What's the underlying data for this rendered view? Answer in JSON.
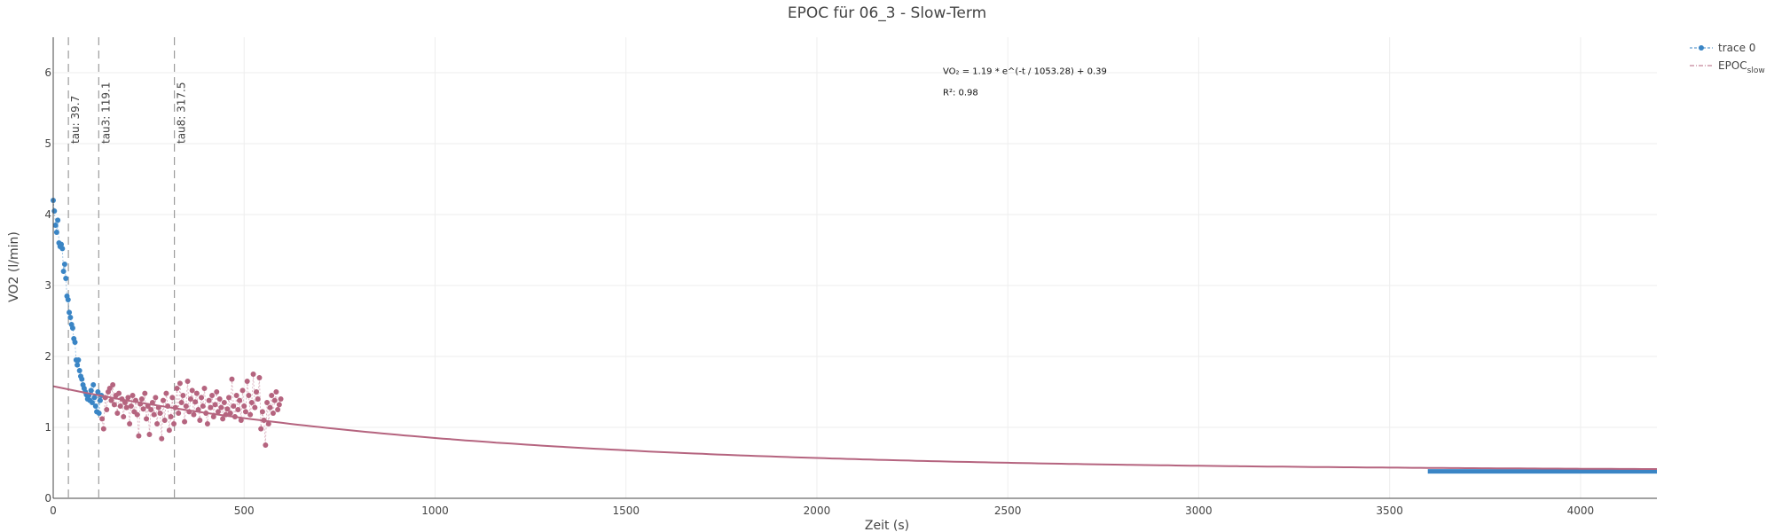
{
  "chart_data": {
    "type": "scatter",
    "title": "EPOC für 06_3 - Slow-Term",
    "xlabel": "Zeit (s)",
    "ylabel": "VO2 (l/min)",
    "xlim": [
      0,
      4200
    ],
    "ylim": [
      0,
      6.5
    ],
    "x_ticks": [
      0,
      500,
      1000,
      1500,
      2000,
      2500,
      3000,
      3500,
      4000
    ],
    "y_ticks": [
      0,
      1,
      2,
      3,
      4,
      5,
      6
    ],
    "grid": true,
    "legend_position": "top-right",
    "colors": {
      "trace0": "#3a85c5",
      "fit": "#b5647f",
      "vline": "#888888"
    },
    "legend": [
      {
        "label": "trace 0",
        "sub": ""
      },
      {
        "label": "EPOC",
        "sub": "slow"
      }
    ],
    "annotations": [
      {
        "text": "VO₂ = 1.19 * e^(-t / 1053.28) + 0.39",
        "x": 2330,
        "y": 5.98
      },
      {
        "text": "R²: 0.98",
        "x": 2330,
        "y": 5.68
      }
    ],
    "vlines": [
      {
        "label": "tau: 39.7",
        "x": 39.7
      },
      {
        "label": "tau3: 119.1",
        "x": 119.1
      },
      {
        "label": "tau8: 317.5",
        "x": 317.5
      }
    ],
    "fit": {
      "name": "EPOC slow",
      "a": 1.19,
      "tau": 1053.28,
      "c": 0.39,
      "x_range": [
        0,
        4200
      ]
    },
    "series": [
      {
        "name": "trace 0",
        "x": [
          0,
          3,
          6,
          9,
          12,
          15,
          18,
          21,
          24,
          27,
          30,
          33,
          36,
          39,
          42,
          45,
          48,
          51,
          54,
          57,
          60,
          63,
          66,
          69,
          72,
          75,
          78,
          81,
          84,
          87,
          90,
          93,
          96,
          99,
          102,
          105,
          108,
          111,
          114,
          117,
          120,
          123,
          126
        ],
        "y": [
          4.2,
          4.05,
          3.85,
          3.75,
          3.92,
          3.6,
          3.55,
          3.58,
          3.52,
          3.2,
          3.3,
          3.1,
          2.85,
          2.8,
          2.62,
          2.55,
          2.45,
          2.4,
          2.25,
          2.2,
          1.95,
          1.88,
          1.95,
          1.8,
          1.72,
          1.68,
          1.6,
          1.55,
          1.5,
          1.46,
          1.4,
          1.45,
          1.38,
          1.52,
          1.35,
          1.6,
          1.42,
          1.3,
          1.22,
          1.5,
          1.2,
          1.38,
          1.45
        ]
      },
      {
        "name": "trace 0 tail",
        "x": [
          3600,
          3650,
          3700,
          3750,
          3800,
          3850,
          3900,
          3950,
          4000,
          4050,
          4100,
          4150,
          4200
        ],
        "y": [
          0.38,
          0.38,
          0.38,
          0.38,
          0.38,
          0.38,
          0.38,
          0.38,
          0.38,
          0.38,
          0.38,
          0.38,
          0.38
        ]
      },
      {
        "name": "EPOC slow points",
        "x": [
          128,
          132,
          136,
          140,
          144,
          148,
          152,
          156,
          160,
          164,
          168,
          172,
          176,
          180,
          184,
          188,
          192,
          196,
          200,
          204,
          208,
          212,
          216,
          220,
          224,
          228,
          232,
          236,
          240,
          244,
          248,
          252,
          256,
          260,
          264,
          268,
          272,
          276,
          280,
          284,
          288,
          292,
          296,
          300,
          304,
          308,
          312,
          316,
          320,
          324,
          328,
          332,
          336,
          340,
          344,
          348,
          352,
          356,
          360,
          364,
          368,
          372,
          376,
          380,
          384,
          388,
          392,
          396,
          400,
          404,
          408,
          412,
          416,
          420,
          424,
          428,
          432,
          436,
          440,
          444,
          448,
          452,
          456,
          460,
          464,
          468,
          472,
          476,
          480,
          484,
          488,
          492,
          496,
          500,
          504,
          508,
          512,
          516,
          520,
          524,
          528,
          532,
          536,
          540,
          544,
          548,
          552,
          556,
          560,
          564,
          568,
          572,
          576,
          580,
          584,
          588,
          592,
          596
        ],
        "y": [
          1.12,
          0.98,
          1.42,
          1.25,
          1.5,
          1.55,
          1.38,
          1.6,
          1.32,
          1.45,
          1.2,
          1.48,
          1.3,
          1.4,
          1.15,
          1.35,
          1.28,
          1.42,
          1.05,
          1.3,
          1.45,
          1.22,
          1.38,
          1.18,
          0.88,
          1.33,
          1.4,
          1.26,
          1.48,
          1.12,
          1.3,
          0.9,
          1.25,
          1.35,
          1.18,
          1.42,
          1.05,
          1.28,
          1.2,
          0.84,
          1.38,
          1.1,
          1.48,
          1.3,
          0.96,
          1.15,
          1.42,
          1.05,
          1.28,
          1.55,
          1.2,
          1.62,
          1.35,
          1.45,
          1.08,
          1.3,
          1.65,
          1.22,
          1.4,
          1.52,
          1.18,
          1.36,
          1.48,
          1.25,
          1.1,
          1.42,
          1.3,
          1.55,
          1.2,
          1.05,
          1.38,
          1.28,
          1.45,
          1.15,
          1.32,
          1.5,
          1.22,
          1.4,
          1.28,
          1.12,
          1.35,
          1.18,
          1.26,
          1.42,
          1.2,
          1.68,
          1.3,
          1.15,
          1.45,
          1.25,
          1.38,
          1.1,
          1.52,
          1.3,
          1.22,
          1.65,
          1.45,
          1.18,
          1.35,
          1.75,
          1.28,
          1.5,
          1.4,
          1.7,
          0.98,
          1.22,
          1.1,
          0.75,
          1.35,
          1.05,
          1.28,
          1.45,
          1.2,
          1.38,
          1.5,
          1.25,
          1.32,
          1.4
        ]
      }
    ]
  }
}
